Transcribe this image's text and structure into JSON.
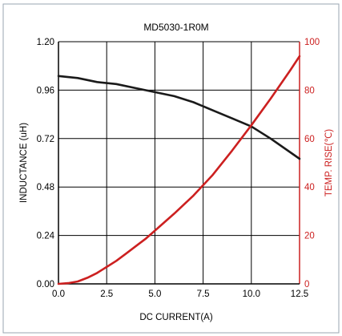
{
  "chart_data": {
    "type": "line",
    "title": "MD5030-1R0M",
    "xlabel": "DC CURRENT(A)",
    "ylabel_left": "INDUCTANCE (uH)",
    "ylabel_right": "TEMP. RISE(℃)",
    "xlim": [
      0,
      12.5
    ],
    "ylim_left": [
      0,
      1.2
    ],
    "ylim_right": [
      0,
      100
    ],
    "x_ticks": [
      "0.0",
      "2.5",
      "5.0",
      "7.5",
      "10.0",
      "12.5"
    ],
    "y_left_ticks": [
      "0.00",
      "0.24",
      "0.48",
      "0.72",
      "0.96",
      "1.20"
    ],
    "y_right_ticks": [
      "0",
      "20",
      "40",
      "60",
      "80",
      "100"
    ],
    "grid": true,
    "colors": {
      "axis": "#000000",
      "inductance": "#1a1a1a",
      "temp": "#cc2020",
      "frame": "#9aa4b2"
    },
    "series": [
      {
        "axis": "left",
        "color": "#1a1a1a",
        "x": [
          0,
          1,
          2,
          3,
          4,
          5,
          6,
          7,
          8,
          9,
          10,
          11,
          12.5
        ],
        "y": [
          1.03,
          1.02,
          1.0,
          0.99,
          0.97,
          0.95,
          0.93,
          0.9,
          0.86,
          0.82,
          0.78,
          0.72,
          0.62
        ]
      },
      {
        "axis": "right",
        "color": "#cc2020",
        "x": [
          0,
          0.5,
          1,
          1.5,
          2,
          2.5,
          3,
          3.5,
          4,
          4.5,
          5,
          6,
          7,
          8,
          9,
          10,
          11,
          12,
          12.5
        ],
        "y": [
          0,
          0.3,
          1,
          2.5,
          4.5,
          7,
          9.5,
          12.5,
          15.5,
          18.5,
          22,
          29,
          36.5,
          45,
          55,
          65.5,
          76.5,
          88,
          94
        ]
      }
    ]
  }
}
